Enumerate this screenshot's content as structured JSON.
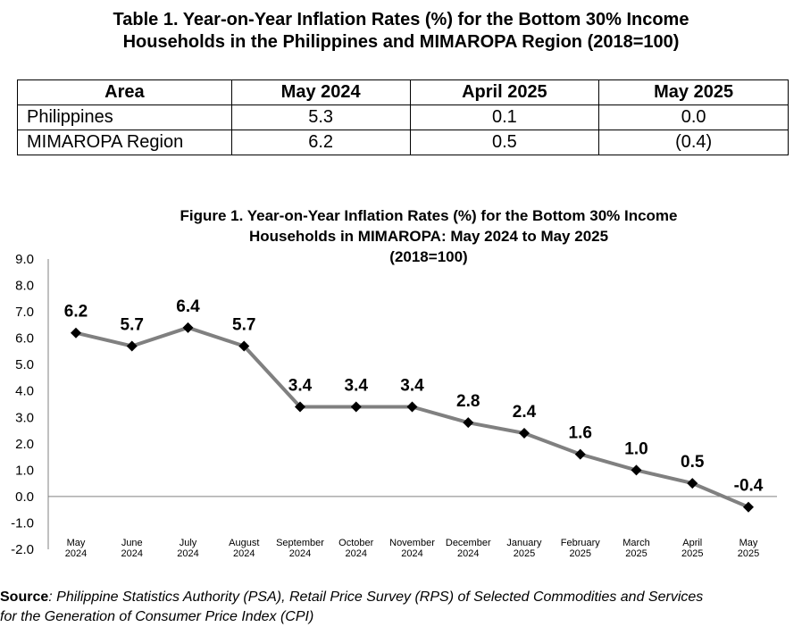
{
  "table": {
    "title_line1": "Table 1. Year-on-Year Inflation Rates (%) for the Bottom 30% Income",
    "title_line2": "Households in the Philippines and MIMAROPA Region (2018=100)",
    "headers": [
      "Area",
      "May 2024",
      "April 2025",
      "May 2025"
    ],
    "rows": [
      {
        "area": "Philippines",
        "values": [
          "5.3",
          "0.1",
          "0.0"
        ]
      },
      {
        "area": "MIMAROPA Region",
        "values": [
          "6.2",
          "0.5",
          "(0.4)"
        ]
      }
    ]
  },
  "chart_data": {
    "type": "line",
    "title_lines": [
      "Figure 1. Year-on-Year Inflation Rates (%) for the Bottom 30% Income",
      "Households in MIMAROPA: May 2024 to May 2025",
      "(2018=100)"
    ],
    "categories": [
      [
        "May",
        "2024"
      ],
      [
        "June",
        "2024"
      ],
      [
        "July",
        "2024"
      ],
      [
        "August",
        "2024"
      ],
      [
        "September",
        "2024"
      ],
      [
        "October",
        "2024"
      ],
      [
        "November",
        "2024"
      ],
      [
        "December",
        "2024"
      ],
      [
        "January",
        "2025"
      ],
      [
        "February",
        "2025"
      ],
      [
        "March",
        "2025"
      ],
      [
        "April",
        "2025"
      ],
      [
        "May",
        "2025"
      ]
    ],
    "values": [
      6.2,
      5.7,
      6.4,
      5.7,
      3.4,
      3.4,
      3.4,
      2.8,
      2.4,
      1.6,
      1.0,
      0.5,
      -0.4
    ],
    "data_labels": [
      "6.2",
      "5.7",
      "6.4",
      "5.7",
      "3.4",
      "3.4",
      "3.4",
      "2.8",
      "2.4",
      "1.6",
      "1.0",
      "0.5",
      "-0.4"
    ],
    "y_ticks": [
      "9.0",
      "8.0",
      "7.0",
      "6.0",
      "5.0",
      "4.0",
      "3.0",
      "2.0",
      "1.0",
      "0.0",
      "-1.0",
      "-2.0"
    ],
    "ylim": [
      -2.0,
      9.0
    ],
    "grid": false,
    "line_color": "#808080",
    "marker_color": "#000000"
  },
  "source": {
    "label": "Source",
    "text1": ": Philippine Statistics Authority (PSA), ",
    "text2": "Retail Price Survey (RPS) of Selected Commodities and Services",
    "line2": "for the Generation of Consumer Price Index (CPI)"
  }
}
